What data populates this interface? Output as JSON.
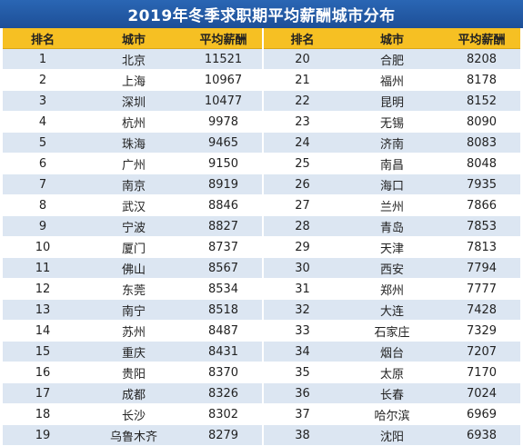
{
  "title": "2019年冬季求职期平均薪酬城市分布",
  "colors": {
    "title_bg": "#1f56a3",
    "header_bg": "#f6c023",
    "row_alt": "#dce6f2"
  },
  "headers": [
    "排名",
    "城市",
    "平均薪酬",
    "排名",
    "城市",
    "平均薪酬"
  ],
  "rows": [
    [
      "1",
      "北京",
      "11521",
      "20",
      "合肥",
      "8208"
    ],
    [
      "2",
      "上海",
      "10967",
      "21",
      "福州",
      "8178"
    ],
    [
      "3",
      "深圳",
      "10477",
      "22",
      "昆明",
      "8152"
    ],
    [
      "4",
      "杭州",
      "9978",
      "23",
      "无锡",
      "8090"
    ],
    [
      "5",
      "珠海",
      "9465",
      "24",
      "济南",
      "8083"
    ],
    [
      "6",
      "广州",
      "9150",
      "25",
      "南昌",
      "8048"
    ],
    [
      "7",
      "南京",
      "8919",
      "26",
      "海口",
      "7935"
    ],
    [
      "8",
      "武汉",
      "8846",
      "27",
      "兰州",
      "7866"
    ],
    [
      "9",
      "宁波",
      "8827",
      "28",
      "青岛",
      "7853"
    ],
    [
      "10",
      "厦门",
      "8737",
      "29",
      "天津",
      "7813"
    ],
    [
      "11",
      "佛山",
      "8567",
      "30",
      "西安",
      "7794"
    ],
    [
      "12",
      "东莞",
      "8534",
      "31",
      "郑州",
      "7777"
    ],
    [
      "13",
      "南宁",
      "8518",
      "32",
      "大连",
      "7428"
    ],
    [
      "14",
      "苏州",
      "8487",
      "33",
      "石家庄",
      "7329"
    ],
    [
      "15",
      "重庆",
      "8431",
      "34",
      "烟台",
      "7207"
    ],
    [
      "16",
      "贵阳",
      "8370",
      "35",
      "太原",
      "7170"
    ],
    [
      "17",
      "成都",
      "8326",
      "36",
      "长春",
      "7024"
    ],
    [
      "18",
      "长沙",
      "8302",
      "37",
      "哈尔滨",
      "6969"
    ],
    [
      "19",
      "乌鲁木齐",
      "8279",
      "38",
      "沈阳",
      "6938"
    ]
  ]
}
